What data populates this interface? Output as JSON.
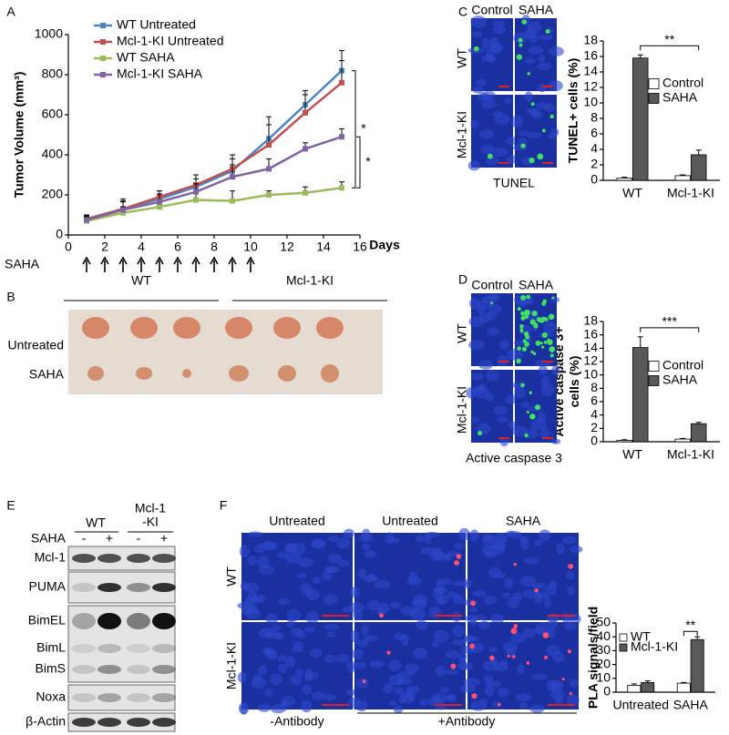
{
  "panel_labels": [
    "A",
    "B",
    "C",
    "D",
    "E",
    "F"
  ],
  "chart_data": [
    {
      "type": "line",
      "xlabel": "Days",
      "ylabel": "Tumor Volume (mm³)",
      "x": [
        1,
        3,
        5,
        7,
        9,
        11,
        13,
        15
      ],
      "xlim": [
        0,
        16
      ],
      "xticks": [
        0,
        2,
        4,
        6,
        8,
        10,
        12,
        14,
        16
      ],
      "ylim": [
        0,
        1000
      ],
      "yticks": [
        0,
        200,
        400,
        600,
        800,
        1000
      ],
      "series": [
        {
          "name": "WT Untreated",
          "color": "#4a86c5",
          "values": [
            80,
            130,
            180,
            240,
            320,
            480,
            650,
            820
          ],
          "errors": [
            15,
            50,
            40,
            40,
            60,
            110,
            70,
            100
          ]
        },
        {
          "name": "Mcl-1-KI Untreated",
          "color": "#c0504d",
          "values": [
            80,
            130,
            190,
            250,
            330,
            450,
            610,
            760
          ],
          "errors": [
            20,
            40,
            30,
            50,
            70,
            100,
            90,
            110
          ]
        },
        {
          "name": "WT SAHA",
          "color": "#9bbb59",
          "values": [
            70,
            110,
            140,
            175,
            170,
            200,
            210,
            235
          ],
          "errors": [
            20,
            30,
            30,
            40,
            50,
            20,
            30,
            30
          ]
        },
        {
          "name": "Mcl-1-KI SAHA",
          "color": "#8064a2",
          "values": [
            75,
            125,
            165,
            215,
            290,
            330,
            430,
            490
          ],
          "errors": [
            15,
            40,
            40,
            40,
            60,
            50,
            30,
            40
          ]
        }
      ],
      "annotations": [
        "*",
        "*"
      ],
      "treatment": {
        "label": "SAHA",
        "days": [
          1,
          2,
          3,
          4,
          5,
          6,
          7,
          8,
          9,
          10
        ]
      }
    },
    {
      "type": "bar",
      "ylabel": "TUNEL+ cells (%)",
      "categories": [
        "WT",
        "Mcl-1-KI"
      ],
      "ylim": [
        0,
        18
      ],
      "yticks": [
        0,
        2,
        4,
        6,
        8,
        10,
        12,
        14,
        16,
        18
      ],
      "series": [
        {
          "name": "Control",
          "color": "#ffffff",
          "values": [
            0.3,
            0.6
          ],
          "errors": [
            0.1,
            0.1
          ]
        },
        {
          "name": "SAHA",
          "color": "#595959",
          "values": [
            15.8,
            3.3
          ],
          "errors": [
            0.4,
            0.6
          ]
        }
      ],
      "annotation": "**"
    },
    {
      "type": "bar",
      "ylabel": "Active caspase 3+ cells (%)",
      "categories": [
        "WT",
        "Mcl-1-KI"
      ],
      "ylim": [
        0,
        18
      ],
      "yticks": [
        0,
        2,
        4,
        6,
        8,
        10,
        12,
        14,
        16,
        18
      ],
      "series": [
        {
          "name": "Control",
          "color": "#ffffff",
          "values": [
            0.2,
            0.4
          ],
          "errors": [
            0.1,
            0.1
          ]
        },
        {
          "name": "SAHA",
          "color": "#595959",
          "values": [
            14.1,
            2.7
          ],
          "errors": [
            1.6,
            0.2
          ]
        }
      ],
      "annotation": "***"
    },
    {
      "type": "bar",
      "ylabel": "PLA signals/field",
      "categories": [
        "Untreated",
        "SAHA"
      ],
      "ylim": [
        0,
        50
      ],
      "yticks": [
        0,
        10,
        20,
        30,
        40,
        50
      ],
      "series": [
        {
          "name": "WT",
          "color": "#ffffff",
          "values": [
            5,
            6.5
          ],
          "errors": [
            1,
            0.5
          ]
        },
        {
          "name": "Mcl-1-KI",
          "color": "#595959",
          "values": [
            7,
            38
          ],
          "errors": [
            1.2,
            2
          ]
        }
      ],
      "annotation": "**"
    }
  ],
  "panel_b": {
    "columns": [
      "WT",
      "Mcl-1-KI"
    ],
    "rows": [
      "Untreated",
      "SAHA"
    ]
  },
  "panel_c": {
    "columns": [
      "Control",
      "SAHA"
    ],
    "rows": [
      "WT",
      "Mcl-1-KI"
    ],
    "caption": "TUNEL"
  },
  "panel_d": {
    "columns": [
      "Control",
      "SAHA"
    ],
    "rows": [
      "WT",
      "Mcl-1-KI"
    ],
    "caption": "Active caspase 3"
  },
  "panel_e": {
    "groups": [
      [
        "WT"
      ],
      [
        "Mcl-1",
        "-KI"
      ]
    ],
    "treatment": "SAHA",
    "lanes": [
      "-",
      "+",
      "-",
      "+"
    ],
    "bands": [
      "Mcl-1",
      "PUMA",
      "BimEL",
      "BimL",
      "BimS",
      "Noxa",
      "β-Actin"
    ]
  },
  "panel_f": {
    "columns": [
      "Untreated",
      "Untreated",
      "SAHA"
    ],
    "rows": [
      "WT",
      "Mcl-1-KI"
    ],
    "footers": [
      "-Antibody",
      "+Antibody"
    ]
  }
}
